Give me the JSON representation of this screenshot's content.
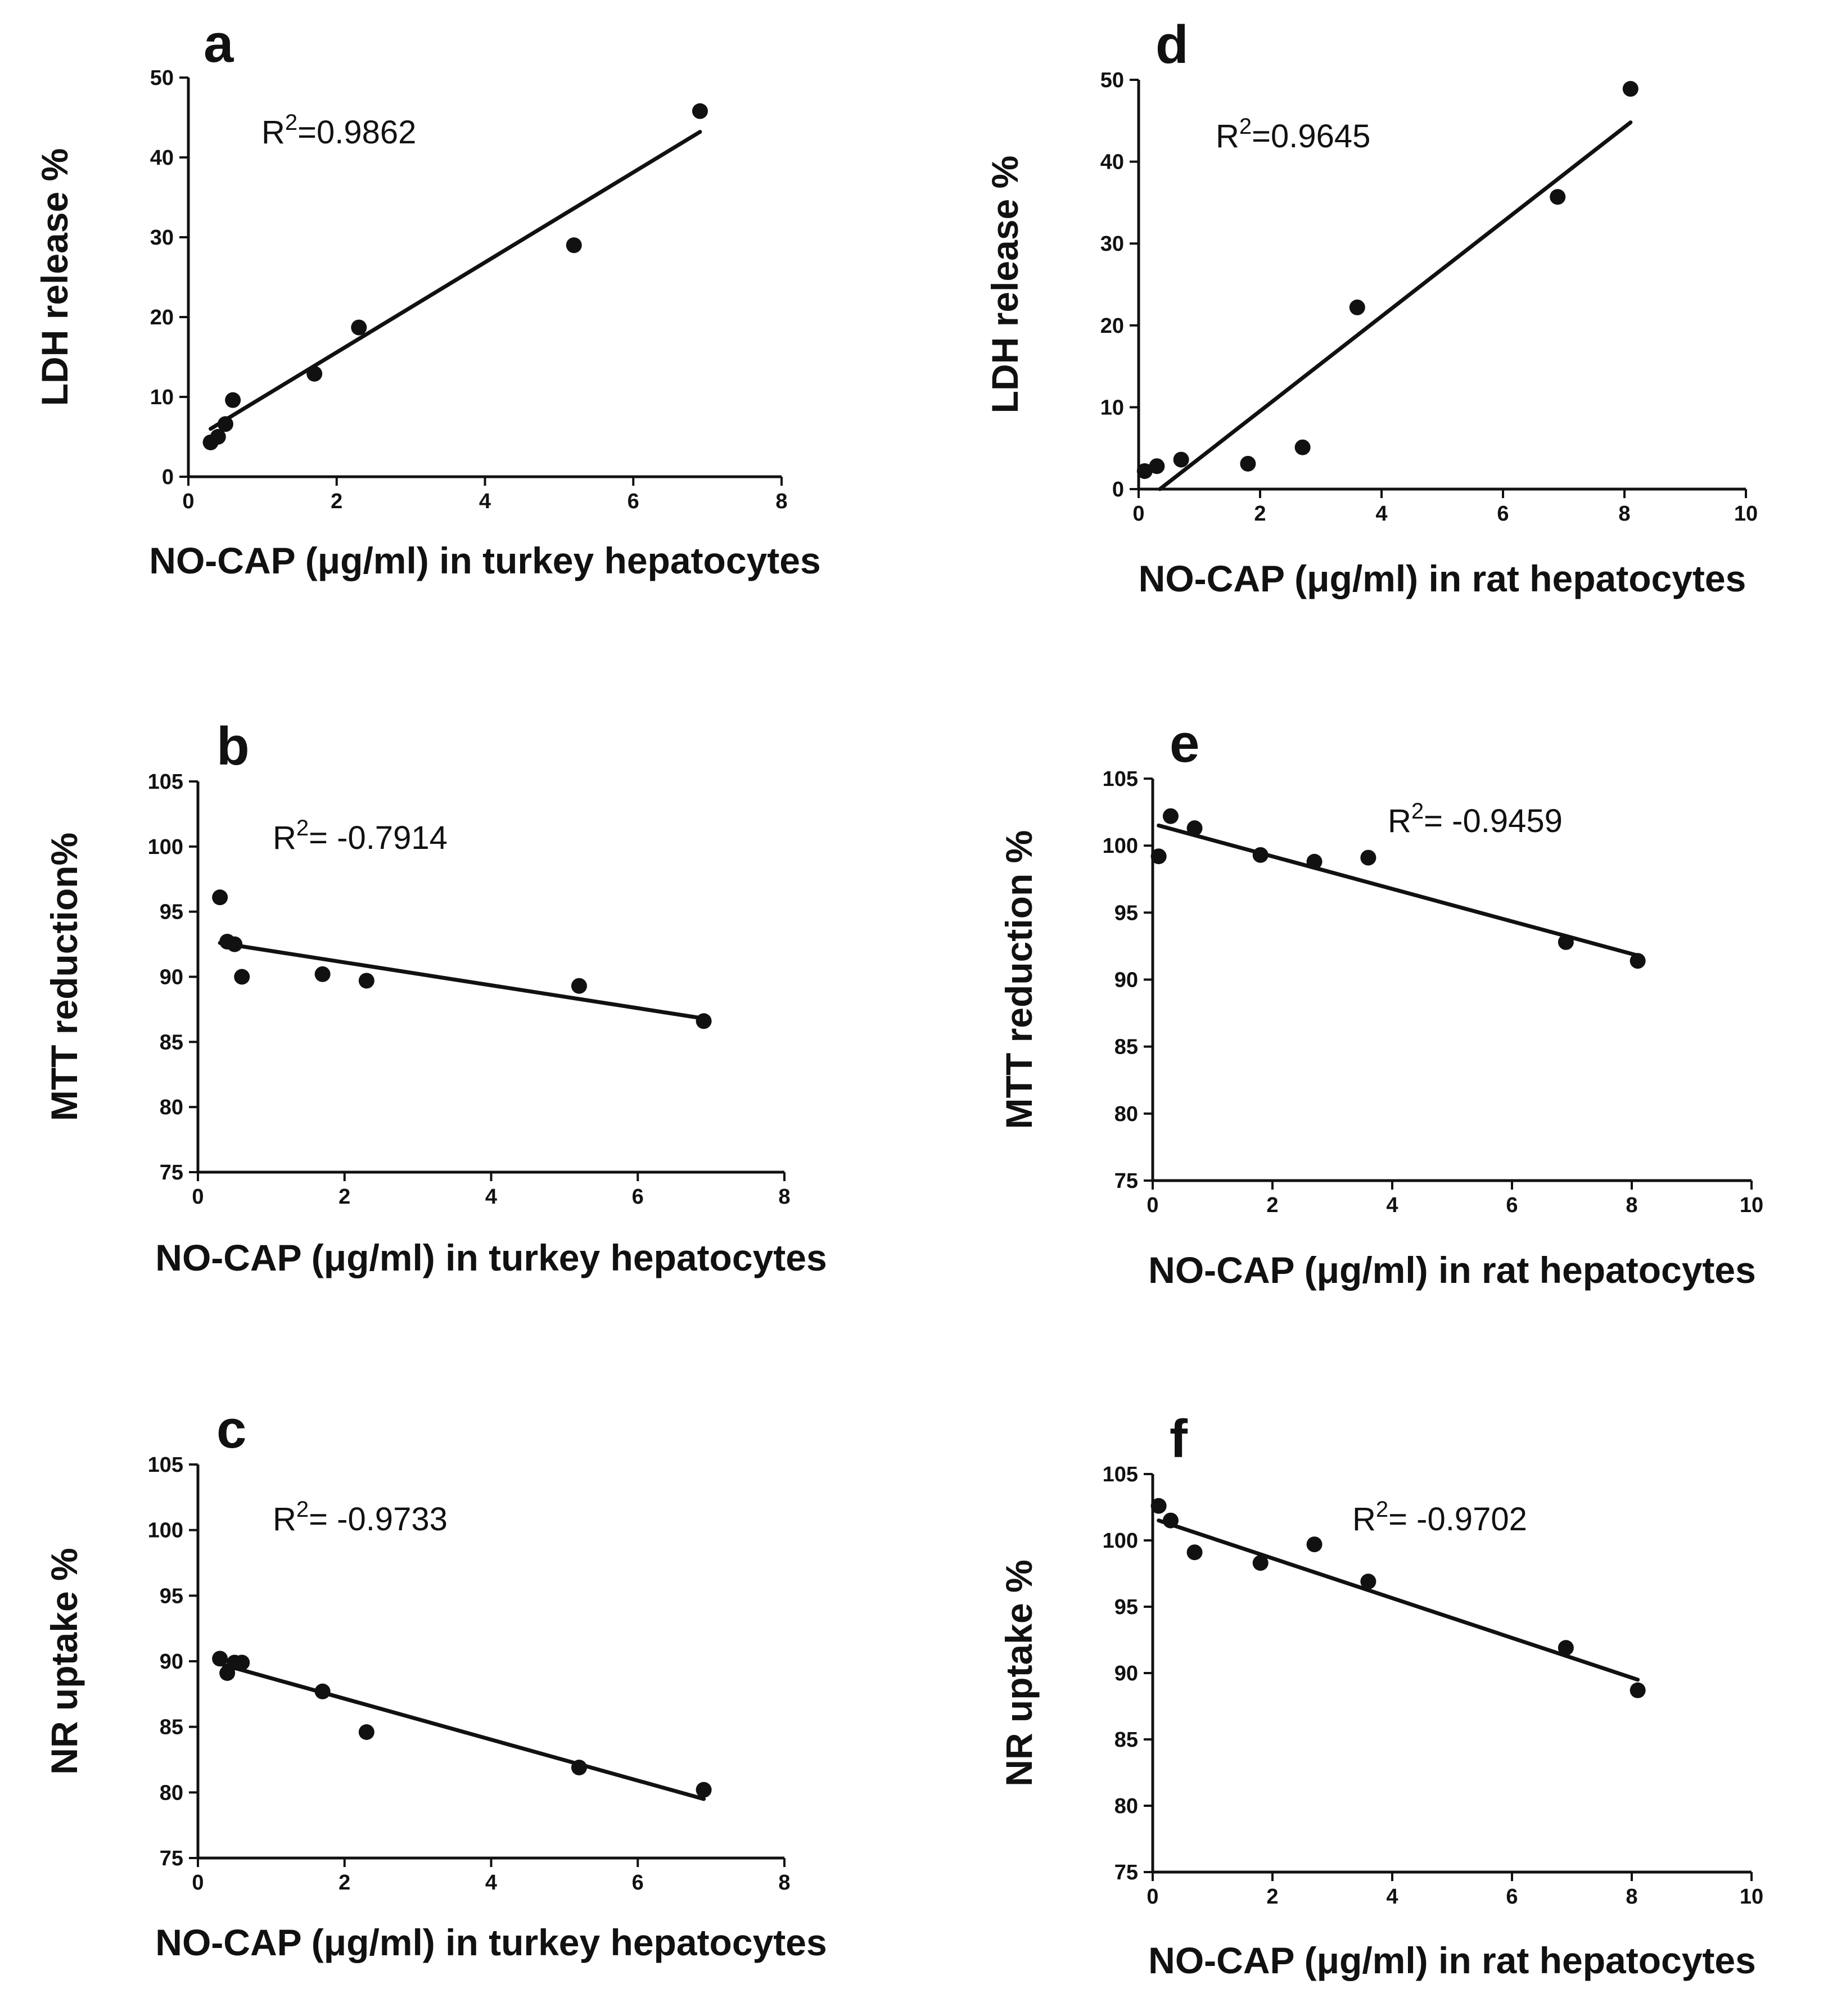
{
  "chart_data": [
    {
      "panel": "a",
      "type": "scatter",
      "xlabel": "NO-CAP (μg/ml) in turkey hepatocytes",
      "ylabel": "LDH release %",
      "annotation": {
        "prefix": "R",
        "sup": "2",
        "text": "=0.9862"
      },
      "xlim": [
        0,
        8
      ],
      "xticks": [
        0,
        2,
        4,
        6,
        8
      ],
      "ylim": [
        0,
        50
      ],
      "yticks": [
        0,
        10,
        20,
        30,
        40,
        50
      ],
      "points": [
        [
          0.3,
          4.3
        ],
        [
          0.4,
          5.0
        ],
        [
          0.5,
          6.6
        ],
        [
          0.6,
          9.6
        ],
        [
          1.7,
          12.9
        ],
        [
          2.3,
          18.7
        ],
        [
          5.2,
          29.0
        ],
        [
          6.9,
          45.8
        ]
      ],
      "fit": [
        [
          0.3,
          6.0
        ],
        [
          6.9,
          43.2
        ]
      ],
      "grid": false
    },
    {
      "panel": "b",
      "type": "scatter",
      "xlabel": "NO-CAP (μg/ml) in turkey hepatocytes",
      "ylabel": "MTT reduction%",
      "annotation": {
        "prefix": "R",
        "sup": "2",
        "text": "= -0.7914"
      },
      "xlim": [
        0,
        8
      ],
      "xticks": [
        0,
        2,
        4,
        6,
        8
      ],
      "ylim": [
        75,
        105
      ],
      "yticks": [
        75,
        80,
        85,
        90,
        95,
        100,
        105
      ],
      "points": [
        [
          0.3,
          96.1
        ],
        [
          0.4,
          92.7
        ],
        [
          0.5,
          92.5
        ],
        [
          0.6,
          90.0
        ],
        [
          1.7,
          90.2
        ],
        [
          2.3,
          89.7
        ],
        [
          5.2,
          89.3
        ],
        [
          6.9,
          86.6
        ]
      ],
      "fit": [
        [
          0.3,
          92.6
        ],
        [
          6.9,
          86.8
        ]
      ],
      "grid": false
    },
    {
      "panel": "c",
      "type": "scatter",
      "xlabel": "NO-CAP (μg/ml) in turkey hepatocytes",
      "ylabel": "NR uptake %",
      "annotation": {
        "prefix": "R",
        "sup": "2",
        "text": "= -0.9733"
      },
      "xlim": [
        0,
        8
      ],
      "xticks": [
        0,
        2,
        4,
        6,
        8
      ],
      "ylim": [
        75,
        105
      ],
      "yticks": [
        75,
        80,
        85,
        90,
        95,
        100,
        105
      ],
      "points": [
        [
          0.3,
          90.2
        ],
        [
          0.4,
          89.1
        ],
        [
          0.5,
          89.9
        ],
        [
          0.6,
          89.9
        ],
        [
          1.7,
          87.7
        ],
        [
          2.3,
          84.6
        ],
        [
          5.2,
          81.9
        ],
        [
          6.9,
          80.2
        ]
      ],
      "fit": [
        [
          0.3,
          89.8
        ],
        [
          6.9,
          79.5
        ]
      ],
      "grid": false
    },
    {
      "panel": "d",
      "type": "scatter",
      "xlabel": "NO-CAP (μg/ml) in rat hepatocytes",
      "ylabel": "LDH release %",
      "annotation": {
        "prefix": "R",
        "sup": "2",
        "text": "=0.9645"
      },
      "xlim": [
        0,
        10
      ],
      "xticks": [
        0,
        2,
        4,
        6,
        8,
        10
      ],
      "ylim": [
        0,
        50
      ],
      "yticks": [
        0,
        10,
        20,
        30,
        40,
        50
      ],
      "points": [
        [
          0.1,
          2.2
        ],
        [
          0.3,
          2.8
        ],
        [
          0.7,
          3.6
        ],
        [
          1.8,
          3.1
        ],
        [
          2.7,
          5.1
        ],
        [
          3.6,
          22.2
        ],
        [
          6.9,
          35.7
        ],
        [
          8.1,
          48.9
        ]
      ],
      "fit": [
        [
          0.35,
          0.0
        ],
        [
          8.1,
          44.8
        ]
      ],
      "grid": false
    },
    {
      "panel": "e",
      "type": "scatter",
      "xlabel": "NO-CAP (μg/ml) in rat hepatocytes",
      "ylabel": "MTT reduction %",
      "annotation": {
        "prefix": "R",
        "sup": "2",
        "text": "= -0.9459"
      },
      "xlim": [
        0,
        10
      ],
      "xticks": [
        0,
        2,
        4,
        6,
        8,
        10
      ],
      "ylim": [
        75,
        105
      ],
      "yticks": [
        75,
        80,
        85,
        90,
        95,
        100,
        105
      ],
      "points": [
        [
          0.1,
          99.2
        ],
        [
          0.3,
          102.2
        ],
        [
          0.7,
          101.3
        ],
        [
          1.8,
          99.3
        ],
        [
          2.7,
          98.8
        ],
        [
          3.6,
          99.1
        ],
        [
          6.9,
          92.8
        ],
        [
          8.1,
          91.4
        ]
      ],
      "fit": [
        [
          0.1,
          101.5
        ],
        [
          8.1,
          91.8
        ]
      ],
      "grid": false
    },
    {
      "panel": "f",
      "type": "scatter",
      "xlabel": "NO-CAP (μg/ml) in rat hepatocytes",
      "ylabel": "NR uptake %",
      "annotation": {
        "prefix": "R",
        "sup": "2",
        "text": "= -0.9702"
      },
      "xlim": [
        0,
        10
      ],
      "xticks": [
        0,
        2,
        4,
        6,
        8,
        10
      ],
      "ylim": [
        75,
        105
      ],
      "yticks": [
        75,
        80,
        85,
        90,
        95,
        100,
        105
      ],
      "points": [
        [
          0.1,
          102.6
        ],
        [
          0.3,
          101.5
        ],
        [
          0.7,
          99.1
        ],
        [
          1.8,
          98.3
        ],
        [
          2.7,
          99.7
        ],
        [
          3.6,
          96.9
        ],
        [
          6.9,
          91.9
        ],
        [
          8.1,
          88.7
        ]
      ],
      "fit": [
        [
          0.1,
          101.5
        ],
        [
          8.1,
          89.5
        ]
      ],
      "grid": false
    }
  ]
}
